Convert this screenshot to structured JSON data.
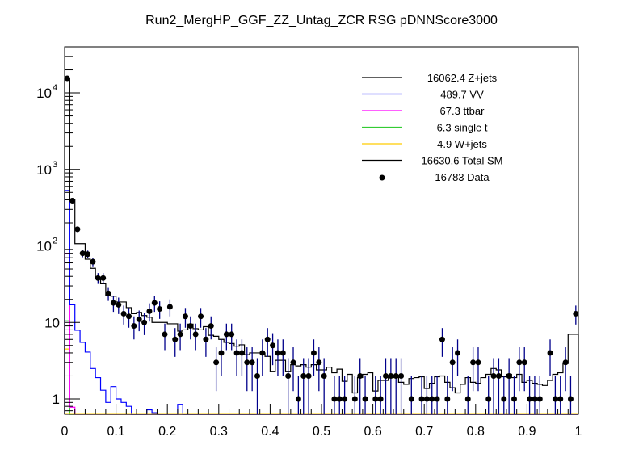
{
  "chart_data": {
    "type": "histogram",
    "title": "Run2_MergHP_GGF_ZZ_Untag_ZCR RSG  pDNNScore3000",
    "xlabel": "",
    "ylabel": "",
    "xlim": [
      0,
      1
    ],
    "ylim": [
      0.63,
      40000
    ],
    "yscale": "log",
    "bins": 100,
    "x_ticks": [
      "0",
      "0.1",
      "0.2",
      "0.3",
      "0.4",
      "0.5",
      "0.6",
      "0.7",
      "0.8",
      "0.9",
      "1"
    ],
    "y_ticks": [
      {
        "base": "10",
        "exp": "4",
        "value": 10000
      },
      {
        "base": "10",
        "exp": "3",
        "value": 1000
      },
      {
        "base": "10",
        "exp": "2",
        "value": 100
      },
      {
        "base": "10",
        "exp": "",
        "value": 10
      },
      {
        "base": "1",
        "exp": "",
        "value": 1
      }
    ],
    "legend_position": "top-right",
    "legend": [
      {
        "label": "16062.4 Z+jets",
        "color": "#000000",
        "style": "line"
      },
      {
        "label": "489.7 VV",
        "color": "#0000ff",
        "style": "line"
      },
      {
        "label": "67.3 ttbar",
        "color": "#ff00ff",
        "style": "line"
      },
      {
        "label": "6.3 single t",
        "color": "#33cc33",
        "style": "line"
      },
      {
        "label": "4.9 W+jets",
        "color": "#ffcc00",
        "style": "line"
      },
      {
        "label": "16630.6 Total SM",
        "color": "#000000",
        "style": "line"
      },
      {
        "label": "16783 Data",
        "color": "#000000",
        "style": "marker"
      }
    ],
    "series": [
      {
        "name": "Total SM",
        "color": "#000000",
        "values": [
          15600,
          408,
          107,
          107,
          67,
          51,
          39,
          32,
          22.5,
          22,
          18.5,
          18.5,
          15.6,
          13,
          13.5,
          12.3,
          11.7,
          10,
          10,
          10,
          9.6,
          9.6,
          7.7,
          8,
          9.5,
          8.3,
          8,
          8.8,
          6.8,
          6.6,
          6,
          5.5,
          5.3,
          4.9,
          5.1,
          3.8,
          4,
          4,
          4,
          3.6,
          2.3,
          3.2,
          3.2,
          2.3,
          2.8,
          2.7,
          2.8,
          2.6,
          2.8,
          2.4,
          2.4,
          2.6,
          2.2,
          2.45,
          1.7,
          2.1,
          1.2,
          1.9,
          2.1,
          2.2,
          1.27,
          1.75,
          1.75,
          1.9,
          1.9,
          1.65,
          1.55,
          1.85,
          1.9,
          1.95,
          1.37,
          1.6,
          1.95,
          2,
          1.65,
          1.4,
          1.2,
          1.55,
          1.9,
          1.65,
          1.6,
          1.9,
          2.1,
          2.5,
          2.4,
          1.95,
          2.1,
          1.9,
          2.1,
          1.65,
          1.75,
          1.6,
          1.55,
          1.5,
          1.75,
          2.1,
          2.2,
          2.9,
          7,
          7
        ]
      },
      {
        "name": "VV",
        "color": "#0000ff",
        "values": [
          530,
          17,
          7.9,
          5.5,
          4.1,
          2.5,
          1.9,
          1.3,
          0.9,
          1.45,
          1.0,
          0.9,
          0.8,
          0,
          0,
          0,
          0.72,
          0.66,
          0,
          0,
          0,
          0,
          0.85,
          0,
          0,
          0,
          0,
          0,
          0,
          0,
          0,
          0,
          0,
          0,
          0,
          0,
          0,
          0,
          0,
          0,
          0,
          0,
          0,
          0,
          0,
          0,
          0,
          0,
          0,
          0,
          0,
          0,
          0,
          0,
          0,
          0,
          0,
          0,
          0,
          0,
          0,
          0,
          0,
          0,
          0,
          0,
          0,
          0,
          0,
          0,
          0,
          0,
          0,
          0,
          0,
          0,
          0,
          0,
          0,
          0,
          0,
          0,
          0,
          0,
          0,
          0,
          0,
          0,
          0,
          0,
          0,
          0,
          0,
          0,
          0,
          0,
          0,
          0,
          0,
          0
        ]
      },
      {
        "name": "ttbar",
        "color": "#ff00ff",
        "values": [
          80,
          0.78,
          0,
          0,
          0,
          0,
          0,
          0,
          0,
          0,
          0,
          0,
          0,
          0,
          0,
          0,
          0,
          0,
          0,
          0,
          0,
          0,
          0,
          0,
          0,
          0,
          0,
          0,
          0,
          0,
          0,
          0,
          0,
          0,
          0,
          0,
          0,
          0,
          0,
          0,
          0,
          0,
          0,
          0,
          0,
          0,
          0,
          0,
          0,
          0,
          0,
          0,
          0,
          0,
          0,
          0,
          0,
          0,
          0,
          0,
          0,
          0,
          0,
          0,
          0,
          0,
          0,
          0,
          0,
          0,
          0,
          0,
          0,
          0,
          0,
          0,
          0,
          0,
          0,
          0,
          0,
          0,
          0,
          0,
          0,
          0,
          0,
          0,
          0,
          0,
          0,
          0,
          0,
          0,
          0,
          0,
          0,
          0,
          0,
          0
        ]
      },
      {
        "name": "single t",
        "color": "#33cc33",
        "values": [
          10.5,
          0,
          0,
          0,
          0,
          0,
          0,
          0,
          0,
          0,
          0,
          0,
          0,
          0,
          0,
          0,
          0,
          0,
          0,
          0,
          0,
          0,
          0,
          0,
          0,
          0,
          0,
          0,
          0,
          0,
          0,
          0,
          0,
          0,
          0,
          0,
          0,
          0,
          0,
          0,
          0,
          0,
          0,
          0,
          0,
          0,
          0,
          0,
          0,
          0,
          0,
          0,
          0,
          0,
          0,
          0,
          0,
          0,
          0,
          0,
          0,
          0,
          0,
          0,
          0,
          0,
          0,
          0,
          0,
          0,
          0,
          0,
          0,
          0,
          0,
          0,
          0,
          0,
          0,
          0,
          0,
          0,
          0,
          0,
          0,
          0,
          0,
          0,
          0,
          0,
          0,
          0,
          0,
          0,
          0,
          0,
          0,
          0,
          0,
          0
        ]
      },
      {
        "name": "W+jets",
        "color": "#ffcc00",
        "values": [
          4.5,
          0,
          0,
          0,
          0,
          0,
          0,
          0,
          0,
          0,
          0,
          0,
          0,
          0,
          0,
          0,
          0,
          0,
          0,
          0,
          0,
          0,
          0,
          0,
          0,
          0,
          0,
          0,
          0,
          0,
          0,
          0,
          0,
          0,
          0,
          0,
          0,
          0,
          0,
          0,
          0,
          0,
          0,
          0,
          0,
          0,
          0,
          0,
          0,
          0,
          0,
          0,
          0,
          0,
          0,
          0,
          0,
          0,
          0,
          0,
          0,
          0,
          0,
          0,
          0,
          0,
          0,
          0,
          0,
          0,
          0,
          0,
          0,
          0,
          0,
          0,
          0,
          0,
          0,
          0,
          0,
          0,
          0,
          0,
          0,
          0,
          0,
          0,
          0,
          0,
          0,
          0,
          0,
          0,
          0,
          0,
          0,
          0,
          0,
          0
        ]
      },
      {
        "name": "Data",
        "color": "#000000",
        "error_color": "#00008b",
        "values": [
          15500,
          390,
          165,
          80,
          78,
          62,
          38,
          38,
          24,
          18,
          17,
          13,
          12,
          9,
          11,
          10,
          14,
          18,
          15,
          7,
          16,
          6,
          7,
          12,
          9,
          7,
          12,
          6,
          9,
          3,
          4,
          7,
          7,
          4,
          4,
          3,
          3,
          2,
          4,
          6,
          5,
          4,
          4,
          2,
          3,
          1,
          2,
          2,
          4,
          3,
          2,
          0,
          1,
          1,
          1,
          0,
          1,
          2,
          1,
          0,
          1,
          1,
          2,
          2,
          2,
          2,
          0,
          1,
          0,
          1,
          1,
          1,
          1,
          6,
          1,
          3,
          4,
          0,
          1,
          3,
          3,
          0,
          1,
          2,
          2,
          1,
          2,
          1,
          3,
          3,
          1,
          1,
          1,
          0,
          4,
          1,
          1,
          3,
          1,
          13
        ]
      }
    ]
  }
}
